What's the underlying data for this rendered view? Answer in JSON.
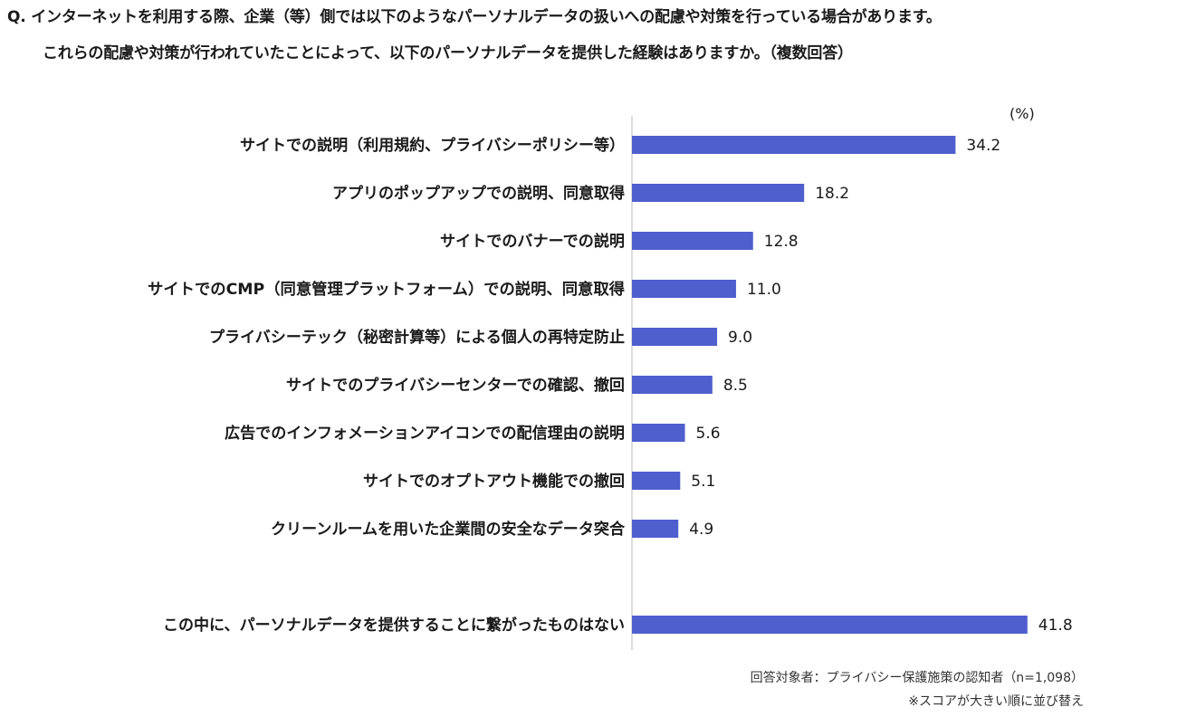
{
  "question": {
    "line1": "Q. インターネットを利用する際、企業（等）側では以下のようなパーソナルデータの扱いへの配慮や対策を行っている場合があります。",
    "line2": "これらの配慮や対策が行われていたことによって、以下のパーソナルデータを提供した経験はありますか。（複数回答）"
  },
  "chart_data": {
    "type": "bar",
    "orientation": "horizontal",
    "unit": "(%)",
    "categories": [
      "サイトでの説明（利用規約、プライバシーポリシー等）",
      "アプリのポップアップでの説明、同意取得",
      "サイトでのバナーでの説明",
      "サイトでのCMP（同意管理プラットフォーム）での説明、同意取得",
      "プライバシーテック（秘密計算等）による個人の再特定防止",
      "サイトでのプライバシーセンターでの確認、撤回",
      "広告でのインフォメーションアイコンでの配信理由の説明",
      "サイトでのオプトアウト機能での撤回",
      "クリーンルームを用いた企業間の安全なデータ突合",
      "この中に、パーソナルデータを提供することに繋がったものはない"
    ],
    "values": [
      34.2,
      18.2,
      12.8,
      11.0,
      9.0,
      8.5,
      5.6,
      5.1,
      4.9,
      41.8
    ],
    "value_labels": [
      "34.2",
      "18.2",
      "12.8",
      "11.0",
      "9.0",
      "8.5",
      "5.6",
      "5.1",
      "4.9",
      "41.8"
    ],
    "bar_color": "#4f5fcd",
    "axis_color": "#d0d0d0",
    "grid": false,
    "legend": "none"
  },
  "notes": {
    "respondents": "回答対象者：プライバシー保護施策の認知者（n=1,098）",
    "sort": "※スコアが大きい順に並び替え"
  }
}
